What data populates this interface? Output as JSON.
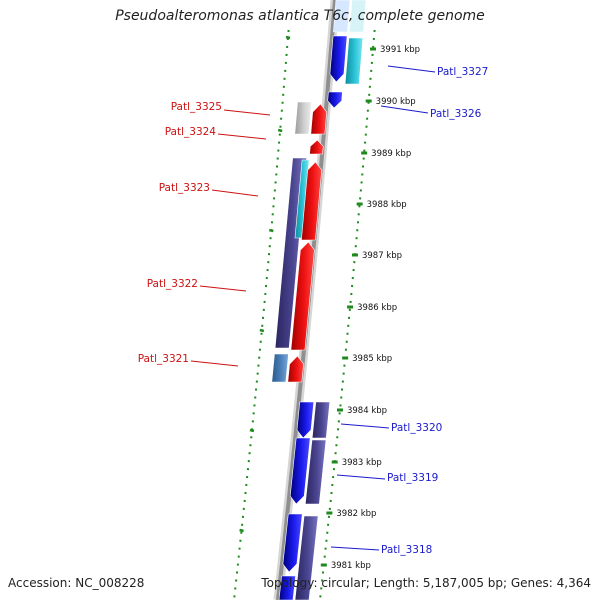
{
  "title": "Pseudoalteromonas atlantica T6c, complete genome",
  "footer": {
    "accession": "Accession: NC_008228",
    "topology": "Topology: circular; Length: 5,187,005 bp; Genes: 4,364"
  },
  "ruler_labels": [
    "3991 kbp",
    "3990 kbp",
    "3989 kbp",
    "3988 kbp",
    "3987 kbp",
    "3986 kbp",
    "3985 kbp",
    "3984 kbp",
    "3983 kbp",
    "3982 kbp",
    "3981 kbp"
  ],
  "genes": [
    {
      "name": "Patl_3327",
      "strand": "forward"
    },
    {
      "name": "Patl_3326",
      "strand": "forward"
    },
    {
      "name": "Patl_3325",
      "strand": "reverse"
    },
    {
      "name": "Patl_3324",
      "strand": "reverse"
    },
    {
      "name": "Patl_3323",
      "strand": "reverse"
    },
    {
      "name": "Patl_3322",
      "strand": "reverse"
    },
    {
      "name": "Patl_3321",
      "strand": "reverse"
    },
    {
      "name": "Patl_3320",
      "strand": "forward"
    },
    {
      "name": "Patl_3319",
      "strand": "forward"
    },
    {
      "name": "Patl_3318",
      "strand": "forward"
    }
  ],
  "colors": {
    "forward_label": "#1a1acc",
    "reverse_label": "#cc1111",
    "forward_gene": "#1a1aee",
    "reverse_gene": "#ee1111",
    "cds_purple": "#4a4590",
    "cds_cyan": "#2bc4d6",
    "backbone": "#8f8f8f",
    "ruler_dots": "#1e8a1e"
  }
}
